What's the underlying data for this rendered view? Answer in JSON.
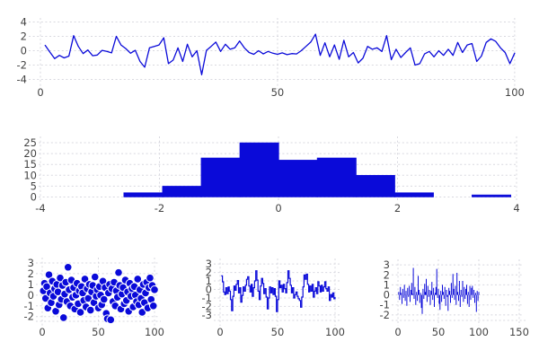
{
  "figure": {
    "background": "#ffffff",
    "accent_color": "#0a0ad9",
    "grid_color": "#d8d8df",
    "tick_label_color": "#434343"
  },
  "chart_data": [
    {
      "id": "noise-line",
      "type": "line",
      "title": "",
      "xlabel": "",
      "ylabel": "",
      "grid": true,
      "legend": null,
      "x_start": 1,
      "xticks": [
        0,
        50,
        100
      ],
      "yticks": [
        -4,
        -2,
        0,
        2,
        4
      ],
      "xlim": [
        0,
        100.4
      ],
      "ylim": [
        -4.57,
        4.57
      ],
      "values": [
        0.75,
        -0.2,
        -1.1,
        -0.65,
        -1.0,
        -0.75,
        2.1,
        0.6,
        -0.4,
        0.1,
        -0.7,
        -0.6,
        0.05,
        -0.1,
        -0.3,
        2.0,
        0.8,
        0.3,
        -0.35,
        0.05,
        -1.5,
        -2.3,
        0.4,
        0.6,
        0.8,
        1.8,
        -1.8,
        -1.3,
        0.4,
        -1.5,
        0.9,
        -0.85,
        0.0,
        -3.35,
        0.05,
        0.6,
        1.2,
        -0.1,
        0.9,
        0.2,
        0.4,
        1.35,
        0.4,
        -0.25,
        -0.5,
        0.0,
        -0.45,
        -0.1,
        -0.35,
        -0.5,
        -0.3,
        -0.55,
        -0.4,
        -0.45,
        0.0,
        0.6,
        1.2,
        2.3,
        -0.65,
        1.1,
        -0.85,
        0.8,
        -1.2,
        1.45,
        -0.85,
        -0.25,
        -1.7,
        -1.05,
        0.6,
        0.2,
        0.4,
        -0.1,
        2.1,
        -1.25,
        0.2,
        -0.95,
        -0.25,
        0.4,
        -2.0,
        -1.8,
        -0.45,
        -0.1,
        -0.85,
        0.0,
        -0.65,
        0.2,
        -0.65,
        1.15,
        -0.25,
        0.8,
        1.0,
        -1.5,
        -0.75,
        1.15,
        1.65,
        1.3,
        0.4,
        -0.25,
        -1.8,
        -0.35
      ]
    },
    {
      "id": "histogram",
      "type": "bar",
      "title": "",
      "xlabel": "",
      "ylabel": "",
      "grid": true,
      "legend": null,
      "bin_start": -2.6,
      "bin_width": 0.65,
      "counts": [
        2,
        5,
        18,
        25,
        17,
        18,
        10,
        2,
        0,
        1
      ],
      "xticks": [
        -4,
        -2,
        0,
        2,
        4
      ],
      "yticks": [
        0,
        5,
        10,
        15,
        20,
        25
      ],
      "xlim": [
        -4,
        4
      ],
      "ylim": [
        0,
        27.9
      ]
    },
    {
      "id": "scatter",
      "type": "scatter",
      "title": "",
      "xlabel": "",
      "ylabel": "",
      "grid": true,
      "legend": null,
      "marker_radius": 4.3,
      "x_start": 1,
      "xticks": [
        0,
        50,
        100
      ],
      "yticks": [
        -2,
        -1,
        0,
        1,
        2,
        3
      ],
      "xlim": [
        -4,
        104
      ],
      "ylim": [
        -2.44,
        3.5
      ],
      "values": [
        0.4,
        1.1,
        -0.3,
        0.8,
        -1.2,
        1.9,
        0.2,
        -0.7,
        1.3,
        -0.1,
        0.6,
        -1.5,
        1.0,
        0.3,
        -0.9,
        1.6,
        -0.4,
        0.9,
        -2.1,
        0.1,
        1.2,
        -0.6,
        2.6,
        0.5,
        -1.0,
        1.4,
        -0.2,
        0.7,
        -1.3,
        0.0,
        1.1,
        -0.8,
        0.4,
        -1.6,
        0.8,
        0.2,
        -0.5,
        1.5,
        -1.1,
        0.6,
        -0.3,
        1.0,
        -1.4,
        0.3,
        0.9,
        -0.7,
        1.7,
        -0.1,
        0.5,
        -1.2,
        0.8,
        0.0,
        -0.9,
        1.3,
        -0.4,
        0.7,
        -1.7,
        -2.2,
        0.2,
        1.0,
        -2.3,
        0.6,
        -0.6,
        1.2,
        -1.0,
        0.4,
        -0.2,
        2.1,
        0.9,
        -1.3,
        0.1,
        0.7,
        -0.8,
        1.4,
        -0.5,
        0.3,
        -1.5,
        1.1,
        -0.1,
        0.6,
        -1.1,
        0.8,
        0.0,
        -0.6,
        1.5,
        -0.9,
        0.5,
        -0.3,
        -1.6,
        1.0,
        -0.7,
        0.2,
        1.2,
        -1.2,
        0.7,
        1.6,
        -0.4,
        0.9,
        -1.0,
        0.5
      ]
    },
    {
      "id": "step",
      "type": "line",
      "line_style": "step",
      "title": "",
      "xlabel": "",
      "ylabel": "",
      "grid": true,
      "legend": null,
      "x_start": 1,
      "xticks": [
        0,
        50,
        100
      ],
      "yticks": [
        -3,
        -2,
        -1,
        0,
        1,
        2,
        3
      ],
      "xlim": [
        -3.9,
        103.9
      ],
      "ylim": [
        -3.65,
        3.65
      ],
      "values": [
        1.6,
        0.9,
        -0.3,
        -0.6,
        0.2,
        -0.5,
        0.3,
        -0.2,
        -1.2,
        -2.5,
        -0.8,
        0.4,
        -0.1,
        0.6,
        1.05,
        -0.4,
        0.2,
        -1.5,
        -0.7,
        0.3,
        -0.2,
        0.5,
        1.2,
        1.5,
        0.4,
        -0.3,
        0.6,
        -0.8,
        0.2,
        1.0,
        2.2,
        1.1,
        -0.2,
        -1.2,
        0.4,
        1.3,
        0.7,
        -0.5,
        0.1,
        -0.9,
        -2.3,
        -1.0,
        0.3,
        -0.4,
        0.2,
        -0.6,
        0.1,
        -0.8,
        -2.6,
        -1.2,
        1.0,
        0.2,
        0.5,
        -0.3,
        0.6,
        0.1,
        -0.4,
        0.8,
        2.2,
        1.3,
        0.5,
        -0.4,
        0.2,
        -1.0,
        -0.6,
        -0.3,
        -0.8,
        -1.1,
        -1.3,
        -2.1,
        -0.9,
        0.3,
        1.7,
        1.2,
        1.8,
        0.6,
        -0.3,
        0.4,
        -0.2,
        0.6,
        -0.9,
        -0.2,
        0.2,
        -0.5,
        0.9,
        0.4,
        -0.3,
        0.5,
        -0.2,
        0.3,
        0.9,
        0.1,
        -0.2,
        0.3,
        -1.3,
        -0.6,
        -0.9,
        -0.4,
        -1.1,
        -0.9
      ]
    },
    {
      "id": "stem",
      "type": "bar",
      "bar_style": "stem",
      "title": "",
      "xlabel": "",
      "ylabel": "",
      "grid": true,
      "legend": null,
      "x_start": 1,
      "xticks": [
        0,
        50,
        100,
        150
      ],
      "yticks": [
        -2,
        -1,
        0,
        1,
        2,
        3
      ],
      "xlim": [
        -5.6,
        155.6
      ],
      "ylim": [
        -2.55,
        3.55
      ],
      "values": [
        0.3,
        -0.5,
        0.8,
        0.2,
        -0.9,
        0.6,
        -0.3,
        1.0,
        -0.6,
        0.4,
        -1.1,
        0.7,
        -0.2,
        0.9,
        -0.7,
        0.5,
        1.2,
        0.1,
        2.7,
        -0.4,
        0.8,
        -1.0,
        0.3,
        -0.6,
        1.9,
        0.5,
        -0.8,
        0.2,
        -1.3,
        -1.9,
        0.6,
        -0.4,
        1.1,
        0.3,
        1.6,
        -0.7,
        0.9,
        -0.2,
        0.5,
        -1.0,
        0.4,
        1.3,
        -0.5,
        0.7,
        -1.2,
        0.2,
        0.8,
        2.6,
        -0.3,
        0.6,
        -0.9,
        -1.5,
        0.4,
        -0.7,
        1.0,
        0.3,
        -0.4,
        0.8,
        -1.1,
        0.5,
        -0.2,
        -1.6,
        0.7,
        0.4,
        -0.8,
        1.2,
        -0.3,
        2.1,
        0.6,
        -0.5,
        0.9,
        -1.0,
        2.2,
        0.3,
        -0.6,
        1.4,
        -1.2,
        0.5,
        -0.2,
        1.4,
        -0.7,
        0.8,
        -0.4,
        0.6,
        1.0,
        -0.9,
        0.3,
        -1.2,
        0.9,
        -0.5,
        0.7,
        0.9,
        -0.3,
        0.5,
        -0.8,
        0.2,
        -1.7,
        0.4,
        -0.6,
        0.3
      ]
    }
  ]
}
